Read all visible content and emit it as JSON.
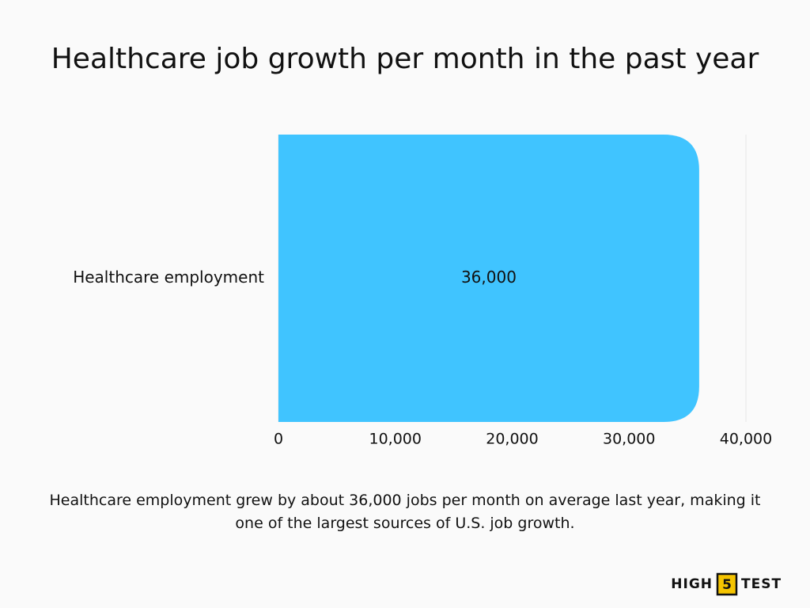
{
  "chart_data": {
    "type": "hbar",
    "title": "Healthcare job growth per month in the past year",
    "categories": [
      "Healthcare employment"
    ],
    "values": [
      36000
    ],
    "value_labels": [
      "36,000"
    ],
    "color": "#40c4ff",
    "xlim": [
      0,
      40000
    ],
    "xticks": [
      0,
      {
        "value": 10000,
        "label": "10,000"
      },
      {
        "value": 20000,
        "label": "20,000"
      },
      {
        "value": 30000,
        "label": "30,000"
      },
      {
        "value": 40000,
        "label": "40,000"
      }
    ],
    "grid": true,
    "caption": "Healthcare employment grew by about 36,000 jobs per month on average last year, making it one of the largest sources of U.S. job growth."
  },
  "logo": {
    "left": "HIGH",
    "middle": "5",
    "right": "TEST"
  }
}
